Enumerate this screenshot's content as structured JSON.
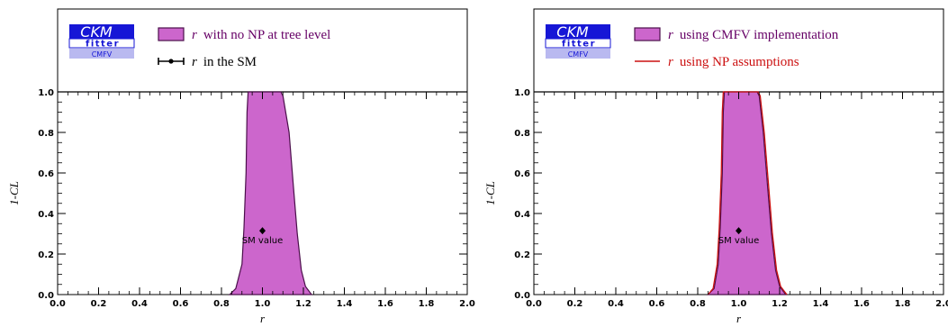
{
  "chart_data": [
    {
      "type": "area",
      "panel": "left",
      "ylabel": "1-CL",
      "xlabel": "r",
      "xlim": [
        0.0,
        2.0
      ],
      "ylim": [
        0.0,
        1.0
      ],
      "x_ticks": [
        "0.0",
        "0.2",
        "0.4",
        "0.6",
        "0.8",
        "1.0",
        "1.2",
        "1.4",
        "1.6",
        "1.8",
        "2.0"
      ],
      "y_ticks": [
        "0.0",
        "0.2",
        "0.4",
        "0.6",
        "0.8",
        "1.0"
      ],
      "logo": {
        "line1": "CKM",
        "line2": "fitter",
        "line3": "CMFV"
      },
      "legend": [
        {
          "symbol": "r",
          "text": "with no NP at tree level",
          "kind": "fill",
          "color": "#cc66cc",
          "edge": "#4b0f4b",
          "text_color": "#660066"
        },
        {
          "symbol": "r",
          "text": "in the SM",
          "kind": "errorbar",
          "color": "#000000",
          "text_color": "#000000"
        }
      ],
      "series": [
        {
          "name": "r with no NP at tree level",
          "kind": "fill",
          "color": "#cc66cc",
          "edge": "#4b0f4b",
          "x": [
            0.84,
            0.87,
            0.9,
            0.91,
            0.92,
            0.925,
            0.93,
            1.09,
            1.1,
            1.13,
            1.15,
            1.17,
            1.19,
            1.21,
            1.24
          ],
          "y": [
            0.0,
            0.03,
            0.15,
            0.33,
            0.6,
            0.9,
            1.0,
            1.0,
            0.98,
            0.8,
            0.55,
            0.3,
            0.12,
            0.04,
            0.0
          ]
        }
      ],
      "points": [
        {
          "name": "SM value",
          "x": 1.0,
          "y": 0.315,
          "label": "SM value"
        }
      ]
    },
    {
      "type": "area",
      "panel": "right",
      "ylabel": "1-CL",
      "xlabel": "r",
      "xlim": [
        0.0,
        2.0
      ],
      "ylim": [
        0.0,
        1.0
      ],
      "x_ticks": [
        "0.0",
        "0.2",
        "0.4",
        "0.6",
        "0.8",
        "1.0",
        "1.2",
        "1.4",
        "1.6",
        "1.8",
        "2.0"
      ],
      "y_ticks": [
        "0.0",
        "0.2",
        "0.4",
        "0.6",
        "0.8",
        "1.0"
      ],
      "logo": {
        "line1": "CKM",
        "line2": "fitter",
        "line3": "CMFV"
      },
      "legend": [
        {
          "symbol": "r",
          "text": "using CMFV implementation",
          "kind": "fill",
          "color": "#cc66cc",
          "edge": "#4b0f4b",
          "text_color": "#660066"
        },
        {
          "symbol": "r",
          "text": "using NP assumptions",
          "kind": "line",
          "color": "#cc1111",
          "text_color": "#cc1111"
        }
      ],
      "series": [
        {
          "name": "r using CMFV implementation",
          "kind": "fill",
          "color": "#cc66cc",
          "edge": "#4b0f4b",
          "x": [
            0.85,
            0.88,
            0.9,
            0.91,
            0.92,
            0.925,
            0.93,
            1.09,
            1.1,
            1.12,
            1.14,
            1.16,
            1.18,
            1.2,
            1.23
          ],
          "y": [
            0.0,
            0.03,
            0.15,
            0.33,
            0.6,
            0.9,
            1.0,
            1.0,
            0.98,
            0.8,
            0.55,
            0.3,
            0.12,
            0.04,
            0.0
          ]
        },
        {
          "name": "r using NP assumptions",
          "kind": "line",
          "color": "#cc1111",
          "x": [
            0.85,
            0.875,
            0.895,
            0.905,
            0.915,
            0.92,
            0.925,
            1.095,
            1.105,
            1.125,
            1.145,
            1.165,
            1.185,
            1.205,
            1.235
          ],
          "y": [
            0.0,
            0.03,
            0.15,
            0.33,
            0.6,
            0.9,
            1.0,
            1.0,
            0.98,
            0.8,
            0.55,
            0.3,
            0.12,
            0.04,
            0.0
          ]
        }
      ],
      "points": [
        {
          "name": "SM value",
          "x": 1.0,
          "y": 0.315,
          "label": "SM value"
        }
      ]
    }
  ]
}
